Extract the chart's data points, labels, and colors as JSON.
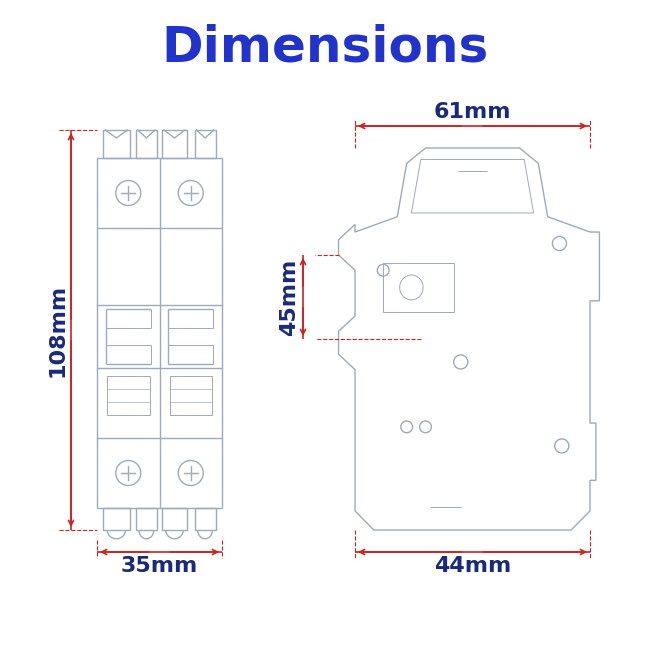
{
  "title": "Dimensions",
  "title_color": "#2233cc",
  "title_fontsize": 36,
  "title_fontweight": "bold",
  "bg_color": "#ffffff",
  "line_color": "#9daabb",
  "dim_color": "#cc2222",
  "label_color": "#1a2a7a",
  "dim_label_fontsize": 16,
  "dim_label_fontweight": "bold",
  "front_width_label": "35mm",
  "front_height_label": "108mm",
  "side_width_label": "44mm",
  "side_top_label": "61mm",
  "side_depth_label": "45mm"
}
